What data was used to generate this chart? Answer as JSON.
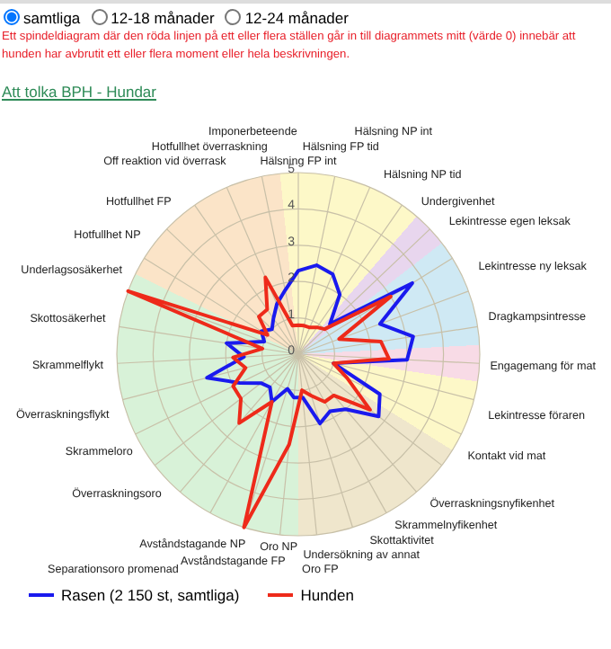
{
  "chart_data": {
    "type": "radar",
    "annotations": [
      "samtliga",
      "12-18 månader",
      "12-24 månader",
      "Ett spindeldiagram där den röda linjen på ett eller flera ställen går in till diagrammets mitt (värde 0) innebär att hunden har avbrutit ett eller flera moment eller hela beskrivningen.",
      "Att tolka BPH - Hundar"
    ],
    "categories": [
      "Hälsning FP int",
      "Hälsning FP tid",
      "Hälsning NP int",
      "Hälsning NP tid",
      "Undergivenhet",
      "Lekintresse egen leksak",
      "Lekintresse ny leksak",
      "Dragkampsintresse",
      "Engagemang för mat",
      "Lekintresse föraren",
      "Kontakt vid mat",
      "Överraskningsnyfikenhet",
      "Skrammelnyfikenhet",
      "Skottaktivitet",
      "Undersökning av annat",
      "Oro FP",
      "Oro NP",
      "Avståndstagande FP",
      "Avståndstagande NP",
      "Separationsoro promenad",
      "Överraskningsoro",
      "Skrammeloro",
      "Överraskningsflykt",
      "Skrammelflykt",
      "Skottosäkerhet",
      "Underlagsosäkerhet",
      "Hotfullhet NP",
      "Hotfullhet FP",
      "Off reaktion vid överrask",
      "Hotfullhet överraskning",
      "Imponerbeteende"
    ],
    "series": [
      {
        "name": "Rasen (2 150 st, samtliga)",
        "color": "#1a1aee",
        "values": [
          2.3,
          2.5,
          2.4,
          2.0,
          1.2,
          3.7,
          2.4,
          3.2,
          3.0,
          1.0,
          2.5,
          2.8,
          2.0,
          1.8,
          2.0,
          1.2,
          1.2,
          1.0,
          1.5,
          1.2,
          1.3,
          1.8,
          2.6,
          1.5,
          2.0,
          1.0,
          1.2,
          1.0,
          1.2,
          1.5,
          1.8
        ]
      },
      {
        "name": "Hunden",
        "color": "#ee2a1a",
        "values": [
          0.8,
          0.8,
          0.8,
          0.9,
          1.0,
          3.0,
          1.2,
          2.3,
          2.5,
          1.0,
          1.5,
          2.5,
          1.5,
          1.5,
          1.2,
          1.0,
          2.5,
          5.0,
          1.5,
          2.5,
          2.0,
          2.0,
          1.5,
          1.8,
          1.0,
          5.0,
          1.0,
          1.5,
          1.5,
          2.3,
          0.8
        ]
      }
    ],
    "ylim": [
      0,
      5
    ],
    "yticks": [
      0,
      1,
      2,
      3,
      4,
      5
    ],
    "grid": true,
    "legend": "bottom"
  }
}
